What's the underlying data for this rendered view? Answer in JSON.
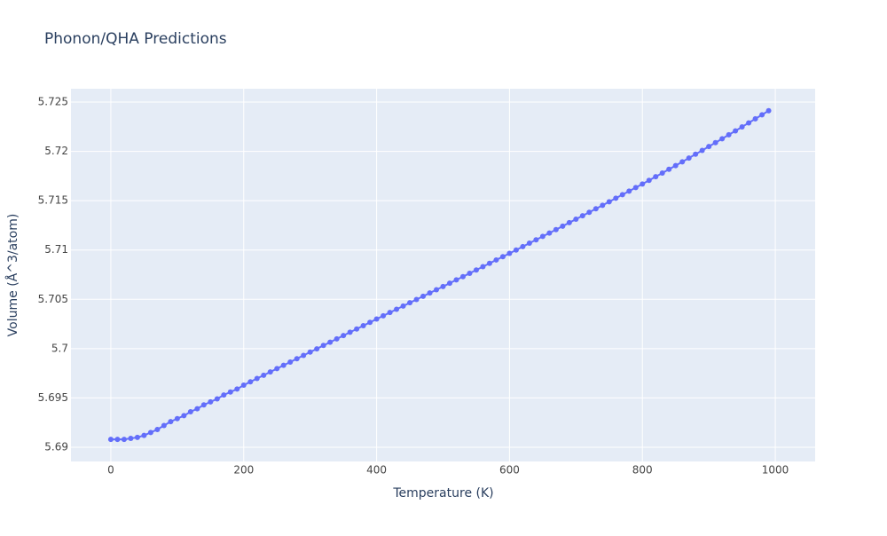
{
  "chart_data": {
    "type": "line",
    "title": "Phonon/QHA Predictions",
    "x_label": "Temperature (K)",
    "y_label": "Volume (Å^3/atom)",
    "x": [
      0,
      10,
      20,
      30,
      40,
      50,
      60,
      70,
      80,
      90,
      100,
      110,
      120,
      130,
      140,
      150,
      160,
      170,
      180,
      190,
      200,
      210,
      220,
      230,
      240,
      250,
      260,
      270,
      280,
      290,
      300,
      310,
      320,
      330,
      340,
      350,
      360,
      370,
      380,
      390,
      400,
      410,
      420,
      430,
      440,
      450,
      460,
      470,
      480,
      490,
      500,
      510,
      520,
      530,
      540,
      550,
      560,
      570,
      580,
      590,
      600,
      610,
      620,
      630,
      640,
      650,
      660,
      670,
      680,
      690,
      700,
      710,
      720,
      730,
      740,
      750,
      760,
      770,
      780,
      790,
      800,
      810,
      820,
      830,
      840,
      850,
      860,
      870,
      880,
      890,
      900,
      910,
      920,
      930,
      940,
      950,
      960,
      970,
      980,
      990
    ],
    "series": [
      {
        "name": "Volume",
        "color": "#636efa",
        "values": [
          5.6908,
          5.6908,
          5.6908,
          5.6909,
          5.691,
          5.6912,
          5.6915,
          5.6918,
          5.6922,
          5.6926,
          5.6929,
          5.6932,
          5.6936,
          5.6939,
          5.6943,
          5.6946,
          5.6949,
          5.6953,
          5.6956,
          5.6959,
          5.6963,
          5.69663,
          5.69697,
          5.6973,
          5.69764,
          5.69797,
          5.69831,
          5.69864,
          5.69898,
          5.69931,
          5.69965,
          5.69998,
          5.70032,
          5.70065,
          5.70099,
          5.70132,
          5.70166,
          5.70199,
          5.70233,
          5.70266,
          5.703,
          5.70333,
          5.70366,
          5.70399,
          5.70432,
          5.70465,
          5.70498,
          5.70531,
          5.70564,
          5.70597,
          5.7063,
          5.70663,
          5.70697,
          5.7073,
          5.70764,
          5.70797,
          5.70831,
          5.70865,
          5.70899,
          5.70932,
          5.70966,
          5.71,
          5.71034,
          5.71069,
          5.71103,
          5.71138,
          5.71172,
          5.71207,
          5.71242,
          5.71277,
          5.71312,
          5.71347,
          5.71382,
          5.71418,
          5.71453,
          5.71489,
          5.71525,
          5.71561,
          5.71597,
          5.71633,
          5.71669,
          5.71706,
          5.71743,
          5.7178,
          5.71818,
          5.71856,
          5.71894,
          5.71932,
          5.71971,
          5.7201,
          5.72049,
          5.72088,
          5.72128,
          5.72168,
          5.72208,
          5.72248,
          5.72289,
          5.7233,
          5.72371,
          5.72412
        ]
      }
    ],
    "xlim": [
      -60,
      1060
    ],
    "ylim": [
      5.68856,
      5.72635
    ],
    "xticks": [
      0,
      200,
      400,
      600,
      800,
      1000
    ],
    "yticks": [
      5.69,
      5.695,
      5.7,
      5.705,
      5.71,
      5.715,
      5.72,
      5.725
    ],
    "grid": true
  }
}
